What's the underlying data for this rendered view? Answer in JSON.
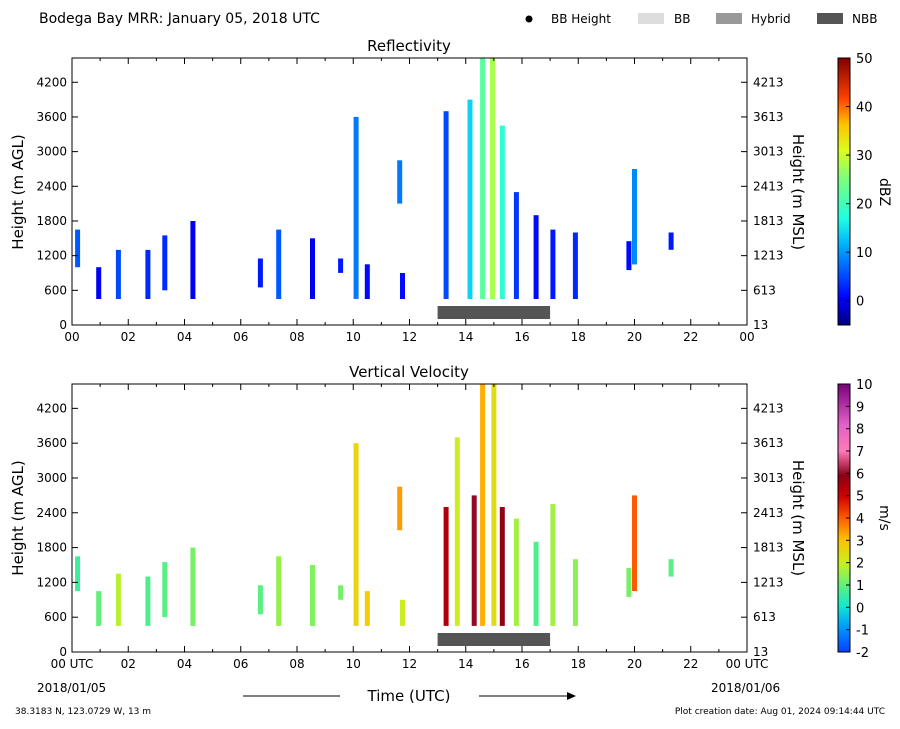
{
  "header": {
    "title": "Bodega Bay MRR:  January 05, 2018 UTC",
    "legend": [
      {
        "label": "BB Height",
        "kind": "dot",
        "color": "#000000"
      },
      {
        "label": "BB",
        "kind": "box",
        "color": "#dddddd"
      },
      {
        "label": "Hybrid",
        "kind": "box",
        "color": "#999999"
      },
      {
        "label": "NBB",
        "kind": "box",
        "color": "#555555"
      }
    ]
  },
  "footer": {
    "location": "38.3183 N, 123.0729 W, 13 m",
    "created": "Plot creation date: Aug 01, 2024 09:14:44 UTC",
    "start_date": "2018/01/05",
    "end_date": "2018/01/06",
    "xlabel": "Time (UTC)"
  },
  "chart_data": [
    {
      "type": "heatmap",
      "title": "Reflectivity",
      "ylabel": "Height (m AGL)",
      "ylabel_right": "Height (m MSL)",
      "xlim": [
        0,
        24
      ],
      "ylim": [
        0,
        4620
      ],
      "x_ticks": [
        "00",
        "02",
        "04",
        "06",
        "08",
        "10",
        "12",
        "14",
        "16",
        "18",
        "20",
        "22",
        "00"
      ],
      "y_ticks": [
        0,
        600,
        1200,
        1800,
        2400,
        3000,
        3600,
        4200
      ],
      "y_ticks_right": [
        13,
        613,
        1213,
        1813,
        2413,
        3013,
        3613,
        4213
      ],
      "colorbar": {
        "label": "dBZ",
        "min": -5,
        "max": 50,
        "ticks": [
          0,
          10,
          20,
          30,
          40,
          50
        ]
      },
      "nbb_bar": {
        "start": 13.0,
        "end": 17.0
      },
      "echo_columns": [
        {
          "t": 0.2,
          "bottom": 1000,
          "top": 1650,
          "value": 6
        },
        {
          "t": 0.95,
          "bottom": 450,
          "top": 1000,
          "value": 0
        },
        {
          "t": 1.65,
          "bottom": 450,
          "top": 1300,
          "value": 5
        },
        {
          "t": 2.7,
          "bottom": 450,
          "top": 1300,
          "value": 3
        },
        {
          "t": 3.3,
          "bottom": 600,
          "top": 1550,
          "value": 3
        },
        {
          "t": 4.3,
          "bottom": 450,
          "top": 1800,
          "value": 0
        },
        {
          "t": 6.7,
          "bottom": 650,
          "top": 1150,
          "value": 2
        },
        {
          "t": 7.35,
          "bottom": 450,
          "top": 1650,
          "value": 6
        },
        {
          "t": 8.55,
          "bottom": 450,
          "top": 1500,
          "value": 0
        },
        {
          "t": 9.55,
          "bottom": 900,
          "top": 1150,
          "value": 2
        },
        {
          "t": 10.1,
          "bottom": 450,
          "top": 3600,
          "value": 8
        },
        {
          "t": 10.5,
          "bottom": 450,
          "top": 1050,
          "value": 1
        },
        {
          "t": 11.65,
          "bottom": 2100,
          "top": 2850,
          "value": 8
        },
        {
          "t": 11.75,
          "bottom": 450,
          "top": 900,
          "value": 1
        },
        {
          "t": 13.3,
          "bottom": 450,
          "top": 3700,
          "value": 5
        },
        {
          "t": 14.15,
          "bottom": 450,
          "top": 3900,
          "value": 14
        },
        {
          "t": 14.6,
          "bottom": 450,
          "top": 4650,
          "value": 22
        },
        {
          "t": 14.95,
          "bottom": 450,
          "top": 4650,
          "value": 28
        },
        {
          "t": 15.3,
          "bottom": 450,
          "top": 3450,
          "value": 18
        },
        {
          "t": 15.8,
          "bottom": 450,
          "top": 2300,
          "value": 4
        },
        {
          "t": 16.5,
          "bottom": 450,
          "top": 1900,
          "value": 1
        },
        {
          "t": 17.1,
          "bottom": 450,
          "top": 1650,
          "value": 2
        },
        {
          "t": 17.9,
          "bottom": 450,
          "top": 1600,
          "value": 3
        },
        {
          "t": 19.8,
          "bottom": 950,
          "top": 1450,
          "value": 1
        },
        {
          "t": 20.0,
          "bottom": 1050,
          "top": 2700,
          "value": 9
        },
        {
          "t": 21.3,
          "bottom": 1300,
          "top": 1600,
          "value": 2
        }
      ]
    },
    {
      "type": "heatmap",
      "title": "Vertical Velocity",
      "ylabel": "Height (m AGL)",
      "ylabel_right": "Height (m MSL)",
      "xlim": [
        0,
        24
      ],
      "ylim": [
        0,
        4620
      ],
      "x_ticks": [
        "00 UTC",
        "02",
        "04",
        "06",
        "08",
        "10",
        "12",
        "14",
        "16",
        "18",
        "20",
        "22",
        "00 UTC"
      ],
      "y_ticks": [
        0,
        600,
        1200,
        1800,
        2400,
        3000,
        3600,
        4200
      ],
      "y_ticks_right": [
        13,
        613,
        1213,
        1813,
        2413,
        3013,
        3613,
        4213
      ],
      "colorbar": {
        "label": "m/s",
        "min": -2,
        "max": 10,
        "ticks": [
          -2,
          -1,
          0,
          1,
          2,
          3,
          4,
          5,
          6,
          7,
          8,
          9,
          10
        ]
      },
      "nbb_bar": {
        "start": 13.0,
        "end": 17.0
      },
      "echo_columns": [
        {
          "t": 0.2,
          "bottom": 1050,
          "top": 1650,
          "value": 0.6
        },
        {
          "t": 0.95,
          "bottom": 450,
          "top": 1050,
          "value": 1.0
        },
        {
          "t": 1.65,
          "bottom": 450,
          "top": 1350,
          "value": 1.8
        },
        {
          "t": 2.7,
          "bottom": 450,
          "top": 1300,
          "value": 0.8
        },
        {
          "t": 3.3,
          "bottom": 600,
          "top": 1550,
          "value": 0.9
        },
        {
          "t": 4.3,
          "bottom": 450,
          "top": 1800,
          "value": 1.2
        },
        {
          "t": 6.7,
          "bottom": 650,
          "top": 1150,
          "value": 0.9
        },
        {
          "t": 7.35,
          "bottom": 450,
          "top": 1650,
          "value": 1.5
        },
        {
          "t": 8.55,
          "bottom": 450,
          "top": 1500,
          "value": 1.3
        },
        {
          "t": 9.55,
          "bottom": 900,
          "top": 1150,
          "value": 1.2
        },
        {
          "t": 10.1,
          "bottom": 450,
          "top": 3600,
          "value": 2.6
        },
        {
          "t": 10.5,
          "bottom": 450,
          "top": 1050,
          "value": 2.8
        },
        {
          "t": 11.65,
          "bottom": 2100,
          "top": 2850,
          "value": 3.4
        },
        {
          "t": 11.75,
          "bottom": 450,
          "top": 900,
          "value": 2.0
        },
        {
          "t": 13.3,
          "bottom": 450,
          "top": 2500,
          "value": 5.4
        },
        {
          "t": 13.7,
          "bottom": 450,
          "top": 3700,
          "value": 2.0
        },
        {
          "t": 14.3,
          "bottom": 450,
          "top": 2700,
          "value": 6.0
        },
        {
          "t": 14.6,
          "bottom": 450,
          "top": 4650,
          "value": 3.2
        },
        {
          "t": 15.0,
          "bottom": 450,
          "top": 4650,
          "value": 2.4
        },
        {
          "t": 15.3,
          "bottom": 450,
          "top": 2500,
          "value": 5.8
        },
        {
          "t": 15.8,
          "bottom": 450,
          "top": 2300,
          "value": 1.6
        },
        {
          "t": 16.5,
          "bottom": 450,
          "top": 1900,
          "value": 0.8
        },
        {
          "t": 17.1,
          "bottom": 450,
          "top": 2550,
          "value": 1.6
        },
        {
          "t": 17.9,
          "bottom": 450,
          "top": 1600,
          "value": 1.4
        },
        {
          "t": 19.8,
          "bottom": 950,
          "top": 1450,
          "value": 1.2
        },
        {
          "t": 20.0,
          "bottom": 1050,
          "top": 2700,
          "value": 4.0
        },
        {
          "t": 21.3,
          "bottom": 1300,
          "top": 1600,
          "value": 0.9
        }
      ]
    }
  ]
}
